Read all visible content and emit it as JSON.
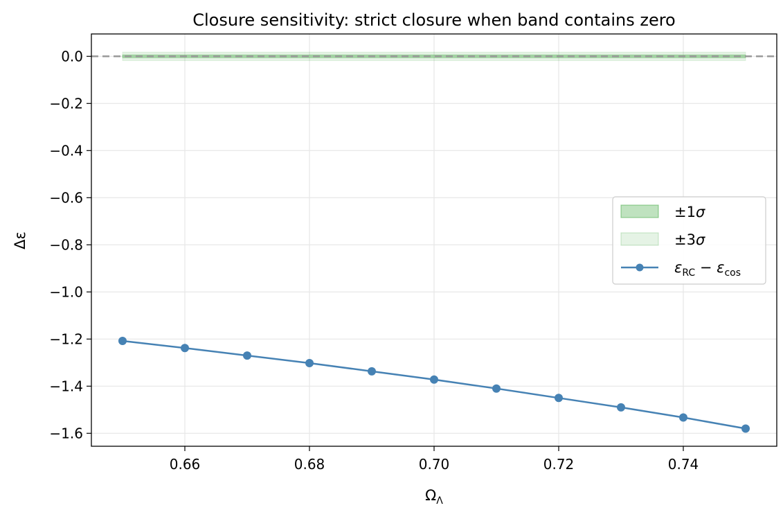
{
  "chart_data": {
    "type": "line",
    "title": "Closure sensitivity: strict closure when band contains zero",
    "xlabel": {
      "main": "Ω",
      "sub": "Λ"
    },
    "ylabel": "Δε",
    "xlim": [
      0.645,
      0.755
    ],
    "ylim": [
      -1.655,
      0.095
    ],
    "x_ticks": [
      0.66,
      0.68,
      0.7,
      0.72,
      0.74
    ],
    "x_tick_labels": [
      "0.66",
      "0.68",
      "0.70",
      "0.72",
      "0.74"
    ],
    "y_ticks": [
      0.0,
      -0.2,
      -0.4,
      -0.6,
      -0.8,
      -1.0,
      -1.2,
      -1.4,
      -1.6
    ],
    "y_tick_labels": [
      "0.0",
      "−0.2",
      "−0.4",
      "−0.6",
      "−0.8",
      "−1.0",
      "−1.2",
      "−1.4",
      "−1.6"
    ],
    "grid": true,
    "legend_position": "center-right",
    "reference_line": {
      "y": 0.0,
      "style": "dashed",
      "color": "#999999"
    },
    "bands": [
      {
        "name": "±1σ",
        "name_main": "±1",
        "name_sym": "σ",
        "x_range": [
          0.65,
          0.75
        ],
        "lower": -0.006,
        "upper": 0.006,
        "color": "#2ca02c",
        "opacity": 0.3
      },
      {
        "name": "±3σ",
        "name_main": "±3",
        "name_sym": "σ",
        "x_range": [
          0.65,
          0.75
        ],
        "lower": -0.018,
        "upper": 0.018,
        "color": "#2ca02c",
        "opacity": 0.12
      }
    ],
    "series": [
      {
        "name": "εRC − εcos",
        "name_parts": {
          "sym1": "ε",
          "sub1": "RC",
          "op": " − ",
          "sym2": "ε",
          "sub2": "cos"
        },
        "color": "#4682b4",
        "x": [
          0.65,
          0.66,
          0.67,
          0.68,
          0.69,
          0.7,
          0.71,
          0.72,
          0.73,
          0.74,
          0.75
        ],
        "y": [
          -1.208,
          -1.238,
          -1.27,
          -1.302,
          -1.337,
          -1.372,
          -1.41,
          -1.45,
          -1.49,
          -1.533,
          -1.58
        ]
      }
    ]
  }
}
